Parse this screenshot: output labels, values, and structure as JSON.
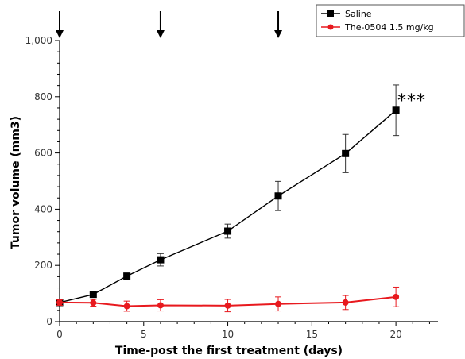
{
  "chart_data": {
    "type": "line",
    "xlabel": "Time-post the first treatment (days)",
    "ylabel": "Tumor volume (mm3)",
    "xlim": [
      0,
      22.5
    ],
    "ylim": [
      0,
      1000
    ],
    "x_ticks": [
      "0",
      "5",
      "10",
      "15",
      "20"
    ],
    "y_ticks": [
      "0",
      "200",
      "400",
      "600",
      "800",
      "1,000"
    ],
    "grid": false,
    "legend_position": "top-right",
    "series": [
      {
        "name": "Saline",
        "color": "#000000",
        "marker": "square",
        "points": [
          {
            "x": 0,
            "y": 68,
            "err": 8
          },
          {
            "x": 2,
            "y": 97,
            "err": 7
          },
          {
            "x": 4,
            "y": 162,
            "err": 8
          },
          {
            "x": 6,
            "y": 220,
            "err": 22
          },
          {
            "x": 10,
            "y": 322,
            "err": 25
          },
          {
            "x": 13,
            "y": 447,
            "err": 52
          },
          {
            "x": 17,
            "y": 598,
            "err": 68
          },
          {
            "x": 20,
            "y": 752,
            "err": 90
          }
        ]
      },
      {
        "name": "The-0504 1.5 mg/kg",
        "color": "#e8191e",
        "marker": "circle",
        "points": [
          {
            "x": 0,
            "y": 68,
            "err": 10
          },
          {
            "x": 2,
            "y": 67,
            "err": 12
          },
          {
            "x": 4,
            "y": 55,
            "err": 18
          },
          {
            "x": 6,
            "y": 58,
            "err": 20
          },
          {
            "x": 10,
            "y": 57,
            "err": 22
          },
          {
            "x": 13,
            "y": 63,
            "err": 25
          },
          {
            "x": 17,
            "y": 68,
            "err": 25
          },
          {
            "x": 20,
            "y": 88,
            "err": 35
          }
        ]
      }
    ],
    "treatment_arrows_days": [
      0,
      6,
      13
    ],
    "annotations": [
      {
        "text": "***"
      }
    ]
  }
}
